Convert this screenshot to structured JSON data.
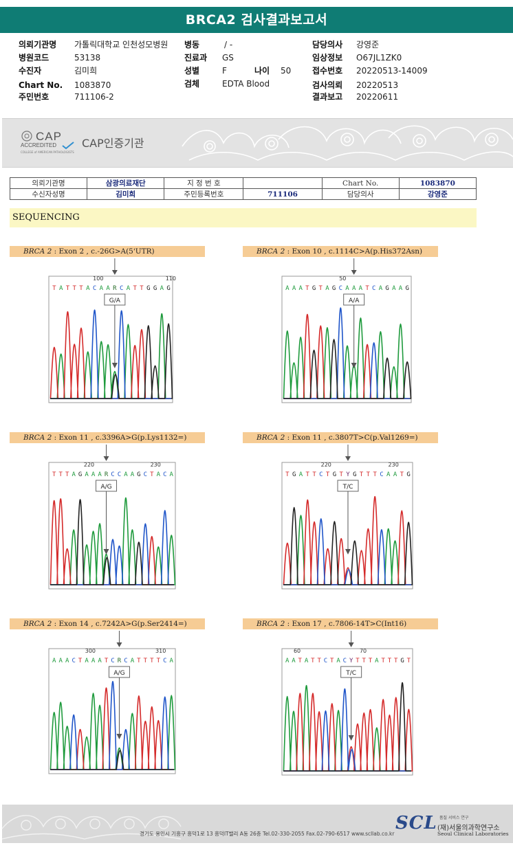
{
  "header": {
    "title": "BRCA2 검사결과보고서"
  },
  "info": [
    {
      "label": "의뢰기관명",
      "value": "가톨릭대학교 인천성모병원"
    },
    {
      "label": "병원코드",
      "value": "53138"
    },
    {
      "label": "수진자",
      "value": "김미희"
    },
    {
      "label": "Chart No.",
      "value": "1083870"
    },
    {
      "label": "주민번호",
      "value": "711106-2"
    },
    {
      "label": "병동",
      "value": "/ -"
    },
    {
      "label": "진료과",
      "value": "GS"
    },
    {
      "label": "성별",
      "value": "F"
    },
    {
      "label": "나이",
      "value": "50"
    },
    {
      "label": "검체",
      "value": "EDTA Blood"
    },
    {
      "label": "담당의사",
      "value": "강영준"
    },
    {
      "label": "임상정보",
      "value": "O67JL1ZK0"
    },
    {
      "label": "접수번호",
      "value": "20220513-14009"
    },
    {
      "label": "검사의뢰",
      "value": "20220513"
    },
    {
      "label": "결과보고",
      "value": "20220611"
    }
  ],
  "cap": {
    "logo_main": "CAP",
    "logo_accredited": "ACCREDITED",
    "logo_sub": "COLLEGE of AMERICAN PATHOLOGISTS",
    "text": "CAP인증기관"
  },
  "sub_table": {
    "row1": {
      "k1": "의뢰기관명",
      "v1": "삼광의료재단",
      "k2": "지 정 번 호",
      "v2": "",
      "k3": "Chart No.",
      "v3": "1083870"
    },
    "row2": {
      "k1": "수신자성명",
      "v1": "김미희",
      "k2": "주민등록번호",
      "v2": "711106",
      "k3": "담당의사",
      "v3": "강영준"
    }
  },
  "section_title": "SEQUENCING",
  "panels": [
    {
      "gene": "BRCA 2",
      "desc": ": Exon 2 , c.-26G>A(5'UTR)",
      "seq": "TATTTACAARCATTGGAG",
      "ticks": [
        "100",
        "110"
      ],
      "call": "G/A",
      "colors": {
        "A": "#1e9a3c",
        "T": "#d42a2a",
        "C": "#1f55c9",
        "G": "#222222",
        "R": "#2a6e2a",
        "Y": "#6a2a6a"
      }
    },
    {
      "gene": "BRCA 2",
      "desc": ": Exon 10 , c.1114C>A(p.His372Asn)",
      "seq": "AAATGTAGCAAATCAGAAG",
      "ticks": [
        "50"
      ],
      "call": "A/A"
    },
    {
      "gene": "BRCA 2",
      "desc": ": Exon 11 , c.3396A>G(p.Lys1132=)",
      "seq": "TTTAGAAARCCAAGCTACA",
      "ticks": [
        "220",
        "230"
      ],
      "call": "A/G"
    },
    {
      "gene": "BRCA 2",
      "desc": ": Exon 11 , c.3807T>C(p.Val1269=)",
      "seq": "TGATTCTGTYGTTTCAATG",
      "ticks": [
        "220",
        "230"
      ],
      "call": "T/C"
    },
    {
      "gene": "BRCA 2",
      "desc": ": Exon 14 , c.7242A>G(p.Ser2414=)",
      "seq": "AAACTAAATCRCATTTTCA",
      "ticks": [
        "300",
        "310"
      ],
      "call": "A/G"
    },
    {
      "gene": "BRCA 2",
      "desc": ": Exon 17 , c.7806-14T>C(Int16)",
      "seq": "AATATTCTACYTTTATTTGT",
      "ticks": [
        "60",
        "70"
      ],
      "call": "T/C"
    }
  ],
  "footer": {
    "address": "경기도 용인시 기흥구 흥덕1로 13 흥덕IT밸리 A동 26층   Tel.02-330-2055   Fax.02-790-6517   www.scllab.co.kr",
    "logo": "SCL",
    "services": "품질  서비스  연구",
    "org_kr": "(재)서울의과학연구소",
    "org_en": "Seoul Clinical Laboratories"
  }
}
